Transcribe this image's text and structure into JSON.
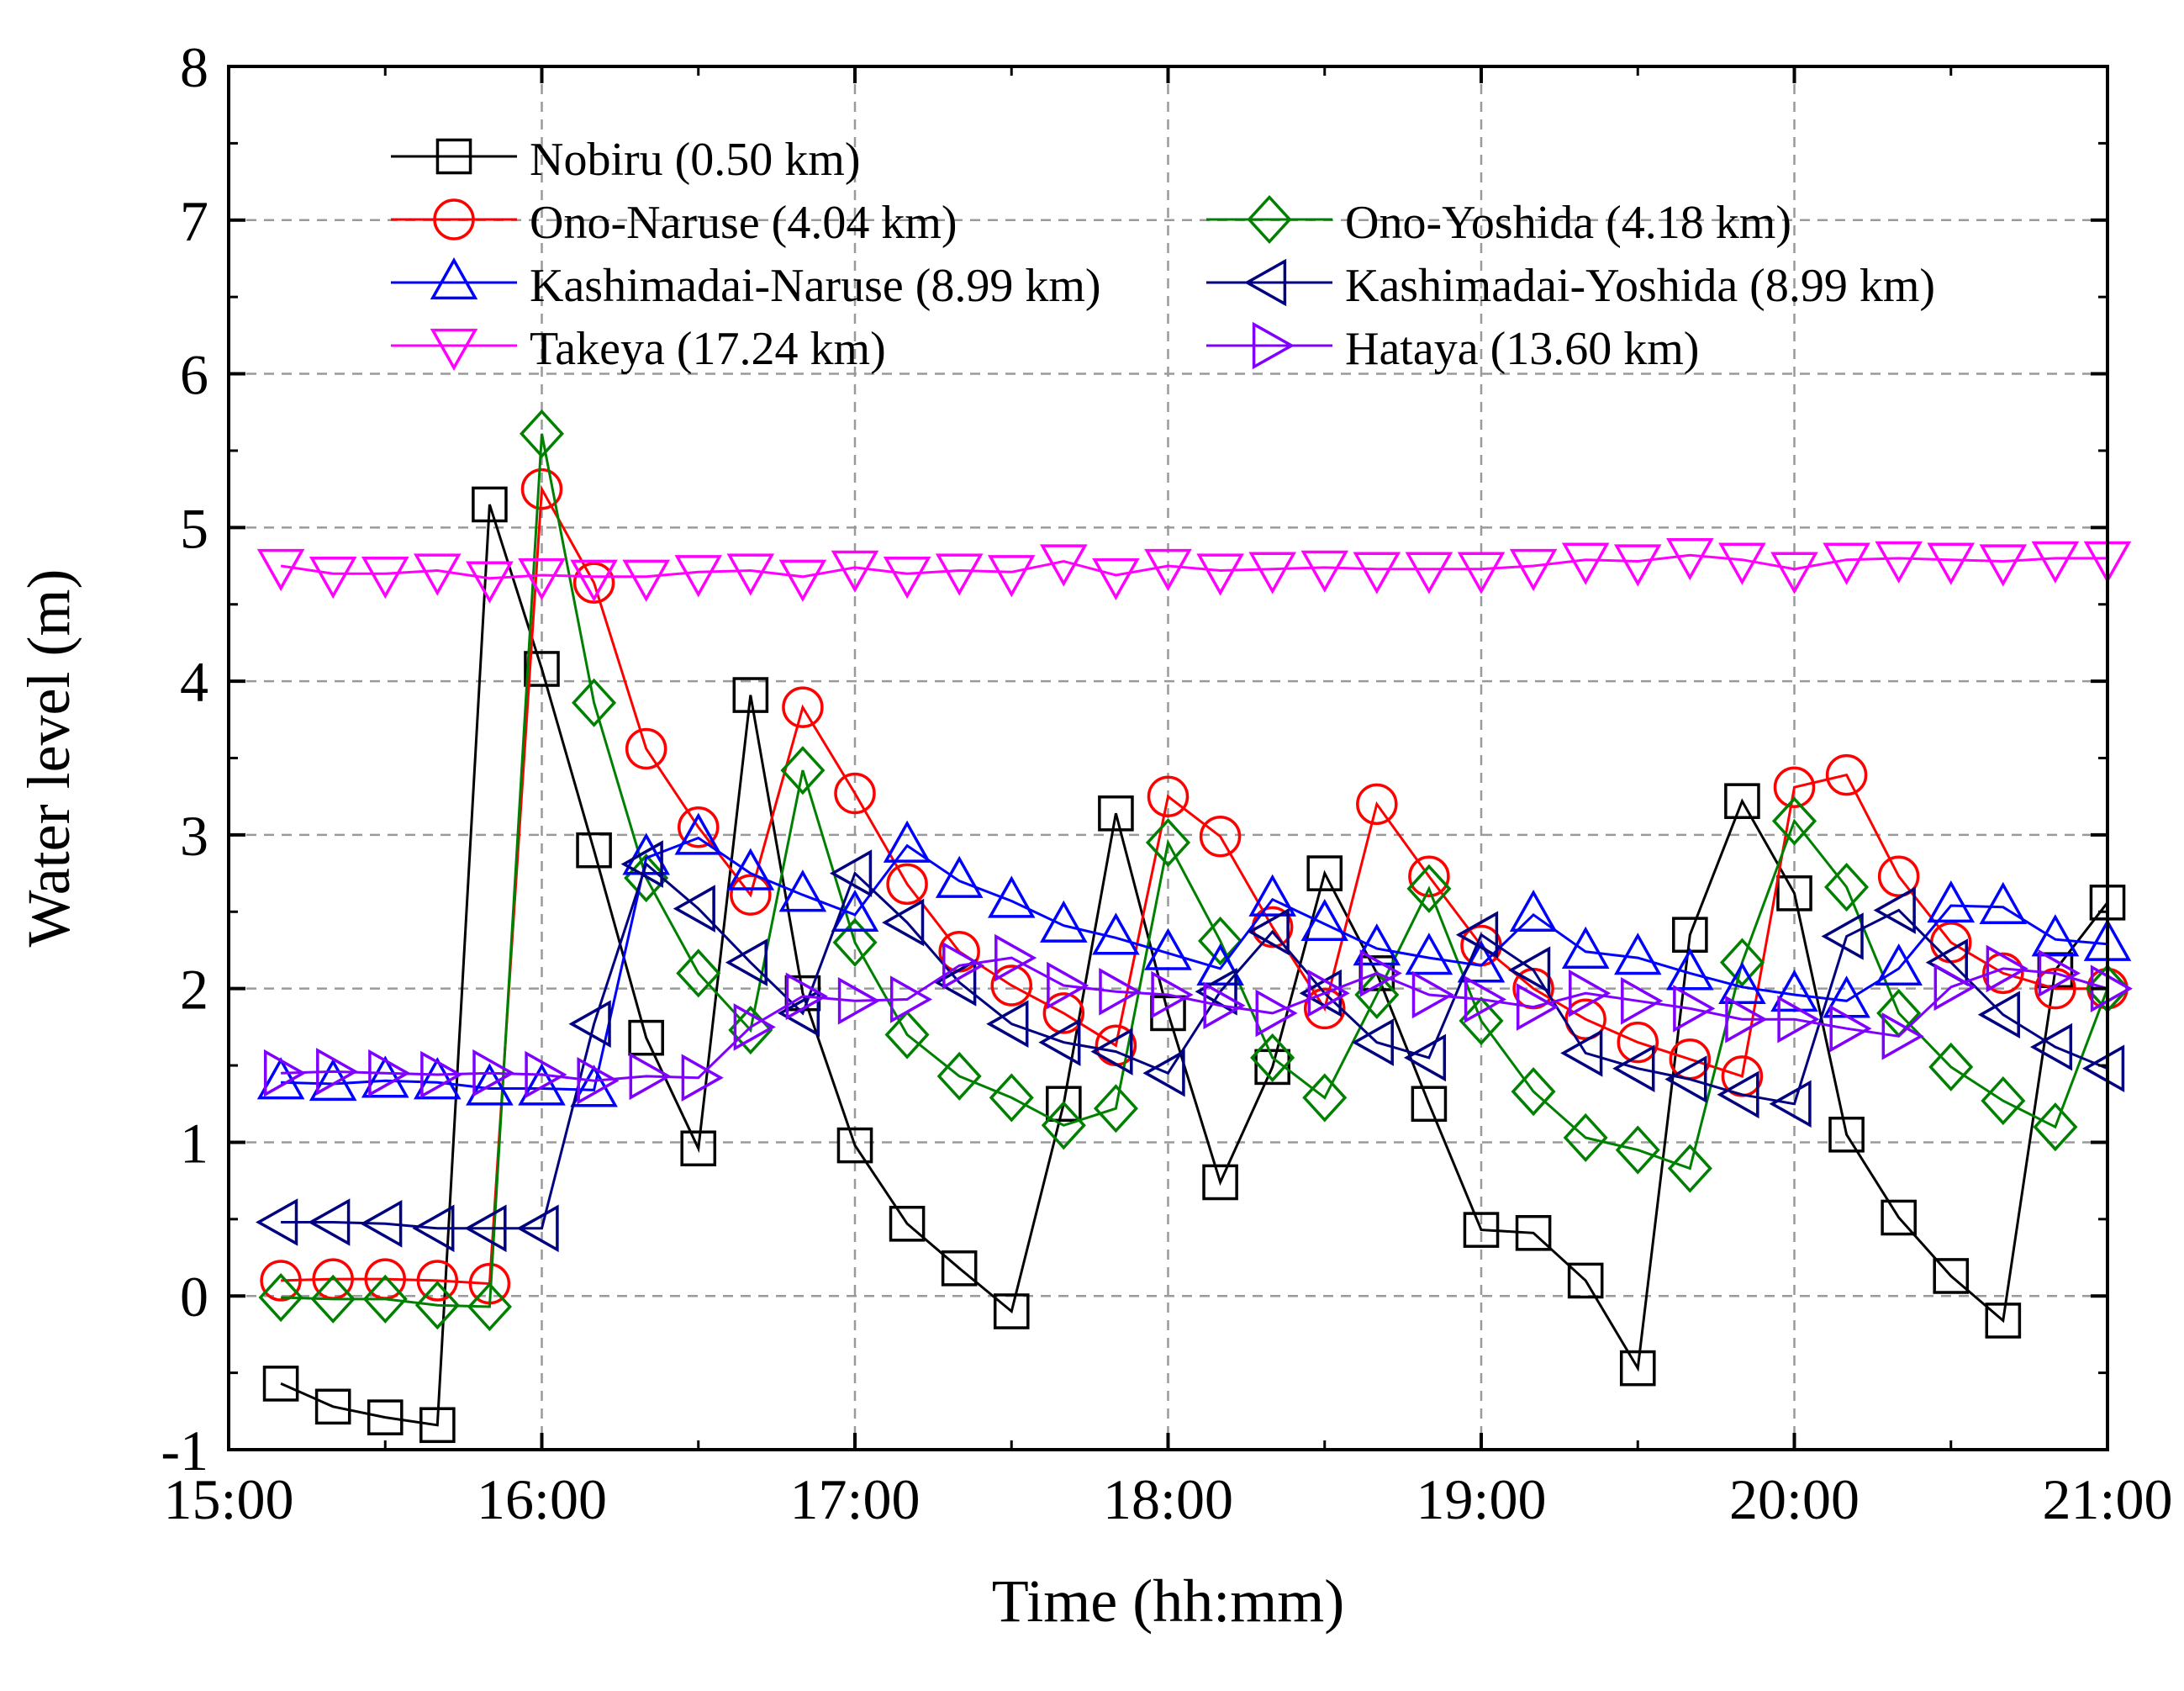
{
  "chart_data": {
    "type": "line",
    "xlabel": "Time (hh:mm)",
    "ylabel": "Water level (m)",
    "x_unit": "minutes since 15:00",
    "xlim": [
      0,
      360
    ],
    "ylim": [
      -1,
      8
    ],
    "xticks": [
      {
        "value": 0,
        "label": "15:00"
      },
      {
        "value": 60,
        "label": "16:00"
      },
      {
        "value": 120,
        "label": "17:00"
      },
      {
        "value": 180,
        "label": "18:00"
      },
      {
        "value": 240,
        "label": "19:00"
      },
      {
        "value": 300,
        "label": "20:00"
      },
      {
        "value": 360,
        "label": "21:00"
      }
    ],
    "yticks": [
      {
        "value": -1,
        "label": "-1"
      },
      {
        "value": 0,
        "label": "0"
      },
      {
        "value": 1,
        "label": "1"
      },
      {
        "value": 2,
        "label": "2"
      },
      {
        "value": 3,
        "label": "3"
      },
      {
        "value": 4,
        "label": "4"
      },
      {
        "value": 5,
        "label": "5"
      },
      {
        "value": 6,
        "label": "6"
      },
      {
        "value": 7,
        "label": "7"
      },
      {
        "value": 8,
        "label": "8"
      }
    ],
    "grid": true,
    "legend_position": "top-left",
    "series": [
      {
        "name": "Nobiru (0.50 km)",
        "color": "#000000",
        "marker": "square",
        "x": [
          10,
          20,
          30,
          40,
          50,
          60,
          70,
          80,
          90,
          100,
          110,
          120,
          130,
          140,
          150,
          160,
          170,
          180,
          190,
          200,
          210,
          220,
          230,
          240,
          250,
          260,
          270,
          280,
          290,
          300,
          310,
          320,
          330,
          340,
          350,
          360
        ],
        "y": [
          -0.57,
          -0.72,
          -0.79,
          -0.84,
          5.15,
          4.08,
          2.9,
          1.68,
          0.96,
          3.91,
          1.97,
          0.98,
          0.47,
          0.18,
          -0.1,
          1.25,
          3.14,
          1.84,
          0.74,
          1.49,
          2.75,
          2.1,
          1.25,
          0.43,
          0.41,
          0.1,
          -0.47,
          2.35,
          3.22,
          2.62,
          1.05,
          0.51,
          0.13,
          -0.16,
          2.12,
          2.56
        ]
      },
      {
        "name": "Ono-Naruse (4.04 km)",
        "color": "#ff0000",
        "marker": "circle",
        "x": [
          10,
          20,
          30,
          40,
          50,
          60,
          70,
          80,
          90,
          100,
          110,
          120,
          130,
          140,
          150,
          160,
          170,
          180,
          190,
          200,
          210,
          220,
          230,
          240,
          250,
          260,
          270,
          280,
          290,
          300,
          310,
          320,
          330,
          340,
          350,
          360
        ],
        "y": [
          0.1,
          0.11,
          0.11,
          0.1,
          0.08,
          5.25,
          4.64,
          3.56,
          3.05,
          2.61,
          3.83,
          3.27,
          2.68,
          2.24,
          2.02,
          1.84,
          1.63,
          3.25,
          2.99,
          2.4,
          1.87,
          3.2,
          2.73,
          2.28,
          2.0,
          1.8,
          1.65,
          1.54,
          1.43,
          3.31,
          3.39,
          2.73,
          2.3,
          2.1,
          2.0,
          2.0
        ]
      },
      {
        "name": "Ono-Yoshida (4.18 km)",
        "color": "#008000",
        "marker": "diamond",
        "x": [
          10,
          20,
          30,
          40,
          50,
          60,
          70,
          80,
          90,
          100,
          110,
          120,
          130,
          140,
          150,
          160,
          170,
          180,
          190,
          200,
          210,
          220,
          230,
          240,
          250,
          260,
          270,
          280,
          290,
          300,
          310,
          320,
          330,
          340,
          350,
          360
        ],
        "y": [
          -0.01,
          -0.02,
          -0.02,
          -0.06,
          -0.07,
          5.61,
          3.86,
          2.72,
          2.1,
          1.73,
          3.42,
          2.3,
          1.7,
          1.43,
          1.29,
          1.11,
          1.22,
          2.95,
          2.31,
          1.55,
          1.29,
          1.96,
          2.65,
          1.79,
          1.33,
          1.03,
          0.95,
          0.83,
          2.17,
          3.09,
          2.66,
          1.84,
          1.49,
          1.27,
          1.1,
          2.0
        ]
      },
      {
        "name": "Kashimadai-Naruse (8.99 km)",
        "color": "#0000ff",
        "marker": "triangle-up",
        "x": [
          10,
          20,
          30,
          40,
          50,
          60,
          70,
          80,
          90,
          100,
          110,
          120,
          130,
          140,
          150,
          160,
          170,
          180,
          190,
          200,
          210,
          220,
          230,
          240,
          250,
          260,
          270,
          280,
          290,
          300,
          310,
          320,
          330,
          340,
          350,
          360
        ],
        "y": [
          1.39,
          1.38,
          1.4,
          1.39,
          1.35,
          1.35,
          1.34,
          2.85,
          2.98,
          2.75,
          2.61,
          2.48,
          2.93,
          2.7,
          2.57,
          2.41,
          2.33,
          2.23,
          2.13,
          2.58,
          2.42,
          2.26,
          2.2,
          2.15,
          2.48,
          2.24,
          2.2,
          2.1,
          2.01,
          1.96,
          1.92,
          2.13,
          2.54,
          2.53,
          2.32,
          2.29
        ]
      },
      {
        "name": "Kashimadai-Yoshida (8.99 km)",
        "color": "#000080",
        "marker": "triangle-left",
        "x": [
          10,
          20,
          30,
          40,
          50,
          60,
          70,
          80,
          90,
          100,
          110,
          120,
          130,
          140,
          150,
          160,
          170,
          180,
          190,
          200,
          210,
          220,
          230,
          240,
          250,
          260,
          270,
          280,
          290,
          300,
          310,
          320,
          330,
          340,
          350,
          360
        ],
        "y": [
          0.48,
          0.48,
          0.47,
          0.44,
          0.44,
          0.44,
          1.77,
          2.81,
          2.52,
          2.17,
          1.84,
          2.75,
          2.43,
          2.04,
          1.77,
          1.65,
          1.59,
          1.45,
          1.98,
          2.37,
          1.97,
          1.65,
          1.55,
          2.35,
          2.12,
          1.58,
          1.48,
          1.41,
          1.31,
          1.25,
          2.34,
          2.51,
          2.17,
          1.83,
          1.62,
          1.48
        ]
      },
      {
        "name": "Takeya (17.24 km)",
        "color": "#ff00ff",
        "marker": "triangle-down",
        "x": [
          10,
          20,
          30,
          40,
          50,
          60,
          70,
          80,
          90,
          100,
          110,
          120,
          130,
          140,
          150,
          160,
          170,
          180,
          190,
          200,
          210,
          220,
          230,
          240,
          250,
          260,
          270,
          280,
          290,
          300,
          310,
          320,
          330,
          340,
          350,
          360
        ],
        "y": [
          4.75,
          4.7,
          4.7,
          4.72,
          4.67,
          4.69,
          4.68,
          4.68,
          4.71,
          4.72,
          4.68,
          4.74,
          4.7,
          4.72,
          4.71,
          4.78,
          4.69,
          4.75,
          4.72,
          4.73,
          4.74,
          4.73,
          4.73,
          4.73,
          4.75,
          4.79,
          4.78,
          4.82,
          4.79,
          4.73,
          4.79,
          4.8,
          4.79,
          4.78,
          4.8,
          4.8
        ]
      },
      {
        "name": "Hataya (13.60  km)",
        "color": "#8000ff",
        "marker": "triangle-right",
        "x": [
          10,
          20,
          30,
          40,
          50,
          60,
          70,
          80,
          90,
          100,
          110,
          120,
          130,
          140,
          150,
          160,
          170,
          180,
          190,
          200,
          210,
          220,
          230,
          240,
          250,
          260,
          270,
          280,
          290,
          300,
          310,
          320,
          330,
          340,
          350,
          360
        ],
        "y": [
          1.45,
          1.46,
          1.45,
          1.44,
          1.45,
          1.44,
          1.4,
          1.43,
          1.42,
          1.75,
          1.95,
          1.92,
          1.93,
          2.15,
          2.2,
          2.02,
          1.98,
          1.96,
          1.89,
          1.84,
          1.97,
          2.1,
          1.96,
          1.93,
          1.88,
          1.97,
          1.92,
          1.87,
          1.8,
          1.8,
          1.74,
          1.69,
          2.01,
          2.13,
          2.1,
          2.0
        ]
      }
    ]
  }
}
